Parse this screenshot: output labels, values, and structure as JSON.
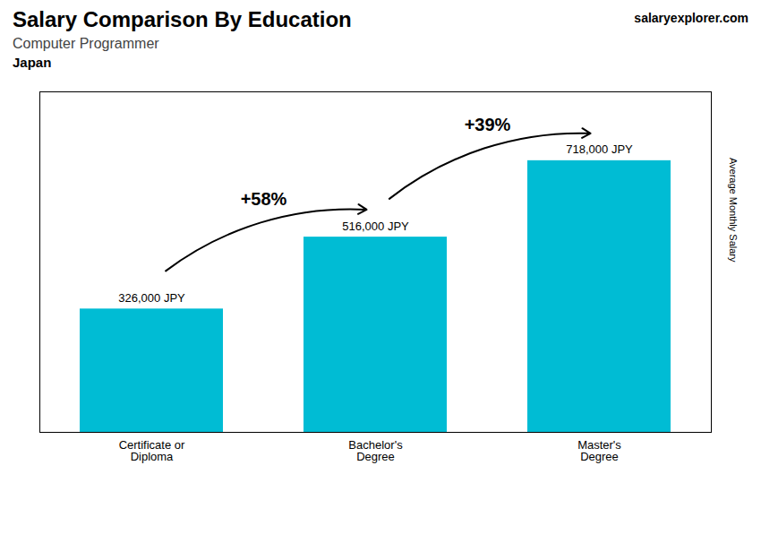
{
  "chart_data": {
    "type": "bar",
    "title": "Salary Comparison By Education",
    "subtitle": "Computer Programmer",
    "annotations": [
      "Japan",
      "+58%",
      "+39%",
      "salaryexplorer.com"
    ],
    "ylabel": "Average Monthly Salary",
    "categories": [
      "Certificate or\nDiploma",
      "Bachelor's\nDegree",
      "Master's\nDegree"
    ],
    "values": [
      326000,
      516000,
      718000
    ],
    "value_labels": [
      "326,000 JPY",
      "516,000 JPY",
      "718,000 JPY"
    ],
    "data_labels": true,
    "color": "#00bcd4",
    "ylim": [
      0,
      900000
    ],
    "tick_labels": "x"
  }
}
